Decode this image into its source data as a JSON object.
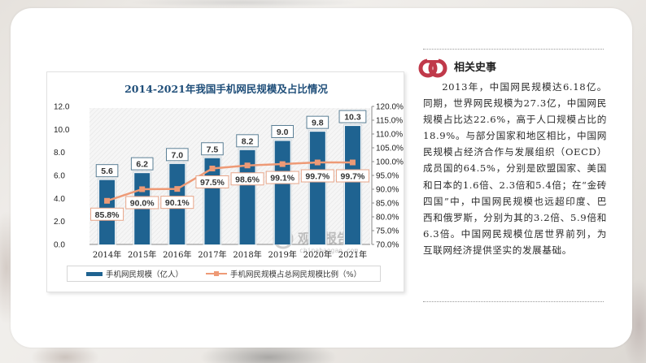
{
  "chart_data": {
    "type": "bar",
    "title": "2014-2021年我国手机网民规模及占比情况",
    "categories": [
      "2014年",
      "2015年",
      "2016年",
      "2017年",
      "2018年",
      "2019年",
      "2020年",
      "2021年"
    ],
    "series": [
      {
        "name": "手机网民规模（亿人）",
        "type": "bar",
        "axis": "left",
        "color": "#1f6391",
        "values": [
          5.6,
          6.2,
          7.0,
          7.5,
          8.2,
          9.0,
          9.8,
          10.3
        ],
        "labels": [
          "5.6",
          "6.2",
          "7.0",
          "7.5",
          "8.2",
          "9.0",
          "9.8",
          "10.3"
        ]
      },
      {
        "name": "手机网民规模占总网民规模比例（%）",
        "type": "line",
        "axis": "right",
        "color": "#ee9a76",
        "values": [
          85.8,
          90.0,
          90.1,
          97.5,
          98.6,
          99.1,
          99.7,
          99.7
        ],
        "labels": [
          "85.8%",
          "90.0%",
          "90.1%",
          "97.5%",
          "98.6%",
          "99.1%",
          "99.7%",
          "99.7%"
        ]
      }
    ],
    "ylim_left": [
      0,
      12
    ],
    "yticks_left": [
      "0.0",
      "2.0",
      "4.0",
      "6.0",
      "8.0",
      "10.0",
      "12.0"
    ],
    "ylim_right": [
      70,
      120
    ],
    "yticks_right": [
      "70.0%",
      "75.0%",
      "80.0%",
      "85.0%",
      "90.0%",
      "95.0%",
      "100.0%",
      "105.0%",
      "110.0%",
      "115.0%",
      "120.0%"
    ],
    "grid": false,
    "legend_position": "bottom",
    "watermark": {
      "name": "观研报告网",
      "url": "chinabaogao.com"
    }
  },
  "sidebar": {
    "heading": "相关史事",
    "body": "2013年，中国网民规模达6.18亿。同期，世界网民规模为27.3亿，中国网民规模占比达22.6%，高于人口规模占比的18.9%。与部分国家和地区相比，中国网民规模占经济合作与发展组织（OECD）成员国的64.5%，分别是欧盟国家、美国和日本的1.6倍、2.3倍和5.4倍；在“金砖四国”中，中国网民规模也远超印度、巴西和俄罗斯，分别为其的3.2倍、5.9倍和6.3倍。中国网民规模位居世界前列，为互联网经济提供坚实的发展基础。",
    "logo_color": "#c0394a"
  }
}
